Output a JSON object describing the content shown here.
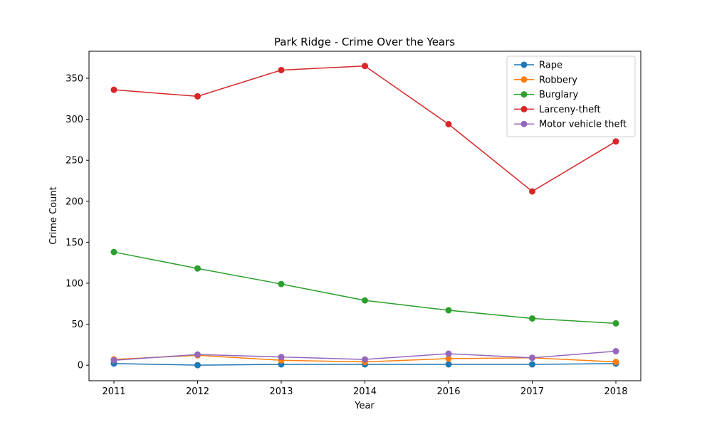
{
  "chart_data": {
    "type": "line",
    "title": "Park Ridge - Crime Over the Years",
    "xlabel": "Year",
    "ylabel": "Crime Count",
    "categories": [
      "2011",
      "2012",
      "2013",
      "2014",
      "2016",
      "2017",
      "2018"
    ],
    "ylim": [
      -19,
      383
    ],
    "yticks": [
      0,
      50,
      100,
      150,
      200,
      250,
      300,
      350
    ],
    "grid": false,
    "legend_position": "top-right",
    "series": [
      {
        "name": "Rape",
        "color": "#1f77b4",
        "values": [
          2,
          0,
          1,
          1,
          1,
          1,
          2
        ]
      },
      {
        "name": "Robbery",
        "color": "#ff7f0e",
        "values": [
          7,
          12,
          6,
          4,
          8,
          9,
          4
        ]
      },
      {
        "name": "Burglary",
        "color": "#2ca02c",
        "values": [
          138,
          118,
          99,
          79,
          67,
          57,
          51
        ]
      },
      {
        "name": "Larceny-theft",
        "color": "#d62728",
        "values": [
          336,
          328,
          360,
          365,
          294,
          212,
          273
        ]
      },
      {
        "name": "Motor vehicle theft",
        "color": "#9467bd",
        "values": [
          6,
          13,
          10,
          7,
          14,
          9,
          17
        ]
      }
    ]
  }
}
